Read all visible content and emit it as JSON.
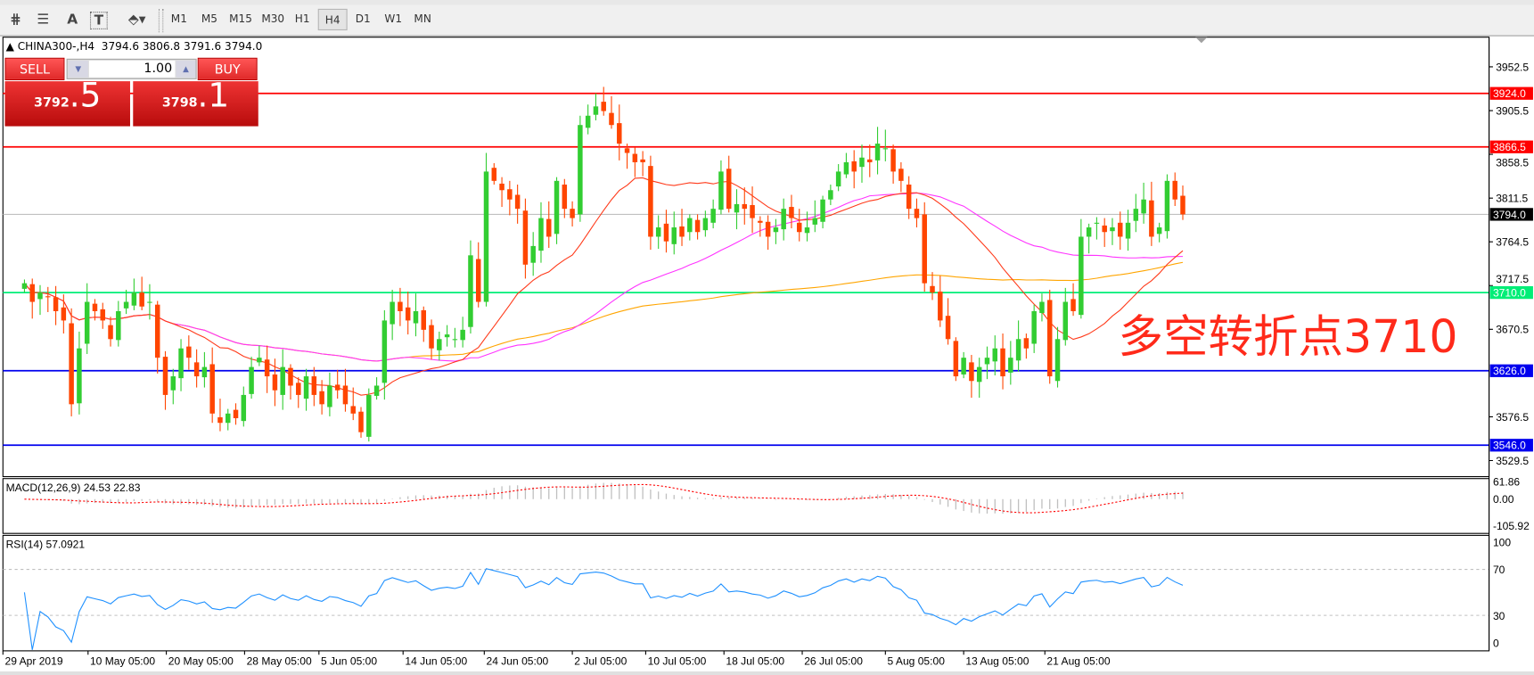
{
  "toolbar": {
    "icons": [
      "indicators-icon",
      "fibonacci-icon",
      "text-icon",
      "text-label-icon",
      "arrows-icon"
    ],
    "icon_glyphs": [
      "⋕",
      "☰",
      "A",
      "T",
      "⬘▾"
    ],
    "timeframes": [
      "M1",
      "M5",
      "M15",
      "M30",
      "H1",
      "H4",
      "D1",
      "W1",
      "MN"
    ],
    "active_timeframe": "H4"
  },
  "header": {
    "symbol": "CHINA300-,H4",
    "ohlc": "3794.6 3806.8 3791.6 3794.0"
  },
  "trade_panel": {
    "sell_label": "SELL",
    "buy_label": "BUY",
    "lot": "1.00",
    "sell_price_main": "3792",
    "sell_price_frac": ".5",
    "buy_price_main": "3798",
    "buy_price_frac": ".1"
  },
  "annotation": {
    "text": "多空转折点3710",
    "color": "#ff2a1a"
  },
  "price_axis": {
    "ticks": [
      "3952.5",
      "3905.5",
      "3858.5",
      "3811.5",
      "3764.5",
      "3717.5",
      "3670.5",
      "3576.5",
      "3529.5"
    ]
  },
  "levels": [
    {
      "price": 3924.0,
      "label": "3924.0",
      "color": "#ff0000"
    },
    {
      "price": 3866.5,
      "label": "3866.5",
      "color": "#ff0000"
    },
    {
      "price": 3794.0,
      "label": "3794.0",
      "color": "#000000",
      "kind": "bid"
    },
    {
      "price": 3710.0,
      "label": "3710.0",
      "color": "#00ee77"
    },
    {
      "price": 3626.0,
      "label": "3626.0",
      "color": "#0000ee"
    },
    {
      "price": 3546.0,
      "label": "3546.0",
      "color": "#0000ee"
    }
  ],
  "macd": {
    "label": "MACD(12,26,9) 24.53 22.83",
    "ticks": [
      "61.86",
      "0.00",
      "-105.92"
    ]
  },
  "rsi": {
    "label": "RSI(14) 57.0921",
    "ticks": [
      "100",
      "70",
      "30",
      "0"
    ]
  },
  "time_axis": [
    "29 Apr 2019",
    "10 May 05:00",
    "20 May 05:00",
    "28 May 05:00",
    "5 Jun 05:00",
    "14 Jun 05:00",
    "24 Jun 05:00",
    "2 Jul 05:00",
    "10 Jul 05:00",
    "18 Jul 05:00",
    "26 Jul 05:00",
    "5 Aug 05:00",
    "13 Aug 05:00",
    "21 Aug 05:00"
  ],
  "chart_data": {
    "type": "candlestick",
    "symbol": "CHINA300-",
    "timeframe": "H4",
    "ylim": [
      3520,
      3970
    ],
    "colors": {
      "bull": "#32cd32",
      "bear": "#ff4500",
      "ma_fast": "#ff3a1a",
      "ma_mid": "#ff33ff",
      "ma_slow": "#ffa500",
      "rsi": "#1e90ff",
      "macd_hist": "#c0c0c0",
      "macd_signal": "#ff0000"
    },
    "closes": [
      3720,
      3700,
      3710,
      3705,
      3690,
      3680,
      3590,
      3650,
      3700,
      3690,
      3680,
      3660,
      3690,
      3700,
      3710,
      3695,
      3700,
      3640,
      3600,
      3620,
      3650,
      3640,
      3620,
      3630,
      3580,
      3570,
      3580,
      3575,
      3600,
      3630,
      3640,
      3620,
      3605,
      3630,
      3610,
      3600,
      3620,
      3600,
      3590,
      3610,
      3605,
      3590,
      3580,
      3560,
      3600,
      3610,
      3680,
      3700,
      3690,
      3680,
      3690,
      3670,
      3650,
      3660,
      3665,
      3660,
      3670,
      3750,
      3700,
      3840,
      3830,
      3820,
      3810,
      3800,
      3740,
      3760,
      3790,
      3770,
      3830,
      3800,
      3790,
      3890,
      3900,
      3910,
      3905,
      3890,
      3870,
      3860,
      3850,
      3850,
      3770,
      3780,
      3765,
      3780,
      3770,
      3790,
      3775,
      3790,
      3800,
      3840,
      3800,
      3805,
      3800,
      3790,
      3785,
      3770,
      3780,
      3800,
      3790,
      3775,
      3780,
      3790,
      3810,
      3820,
      3840,
      3850,
      3840,
      3855,
      3850,
      3870,
      3865,
      3840,
      3830,
      3800,
      3790,
      3720,
      3710,
      3680,
      3660,
      3620,
      3640,
      3615,
      3630,
      3640,
      3650,
      3620,
      3640,
      3660,
      3650,
      3690,
      3700,
      3620,
      3660,
      3700,
      3690,
      3770,
      3780,
      3785,
      3775,
      3780,
      3770,
      3785,
      3800,
      3810,
      3770,
      3780,
      3830,
      3810,
      3794
    ],
    "rsi_levels": [
      70,
      30
    ]
  }
}
